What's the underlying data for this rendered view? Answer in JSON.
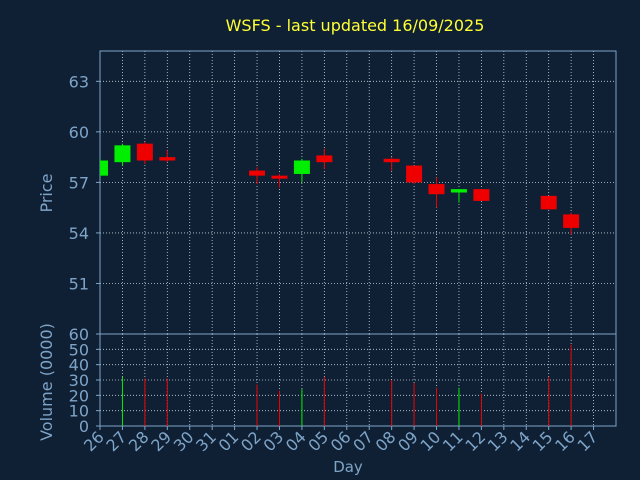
{
  "colors": {
    "background": "#0f2034",
    "axis": "#7ea4c8",
    "grid": "#c8d2dc",
    "title": "#ffff33",
    "up": "#00ee00",
    "down": "#ee0000"
  },
  "chart_data": [
    {
      "type": "candlestick",
      "title": "WSFS - last updated 16/09/2025",
      "ylabel": "Price",
      "ylim": [
        48.0,
        64.8
      ],
      "yticks": [
        "51",
        "54",
        "57",
        "60",
        "63"
      ],
      "ytick_values": [
        51,
        54,
        57,
        60,
        63
      ],
      "grid": true,
      "categories": [
        "26",
        "27",
        "28",
        "29",
        "30",
        "31",
        "01",
        "02",
        "03",
        "04",
        "05",
        "06",
        "07",
        "08",
        "09",
        "10",
        "11",
        "12",
        "13",
        "14",
        "15",
        "16",
        "17"
      ],
      "candles": [
        {
          "day": "26",
          "open": 57.4,
          "close": 58.3,
          "high": 58.4,
          "low": 57.3
        },
        {
          "day": "27",
          "open": 58.2,
          "close": 59.2,
          "high": 59.3,
          "low": 58.0
        },
        {
          "day": "28",
          "open": 59.3,
          "close": 58.3,
          "high": 59.4,
          "low": 58.1
        },
        {
          "day": "29",
          "open": 58.5,
          "close": 58.3,
          "high": 58.9,
          "low": 58.2
        },
        {
          "day": "02",
          "open": 57.7,
          "close": 57.4,
          "high": 57.9,
          "low": 56.9
        },
        {
          "day": "03",
          "open": 57.4,
          "close": 57.3,
          "high": 57.5,
          "low": 56.7
        },
        {
          "day": "04",
          "open": 57.5,
          "close": 58.3,
          "high": 58.4,
          "low": 57.0
        },
        {
          "day": "05",
          "open": 58.6,
          "close": 58.2,
          "high": 59.0,
          "low": 57.8
        },
        {
          "day": "08",
          "open": 58.4,
          "close": 58.2,
          "high": 58.5,
          "low": 57.7
        },
        {
          "day": "09",
          "open": 58.0,
          "close": 57.0,
          "high": 58.0,
          "low": 56.9
        },
        {
          "day": "10",
          "open": 56.9,
          "close": 56.3,
          "high": 57.3,
          "low": 55.5
        },
        {
          "day": "11",
          "open": 56.4,
          "close": 56.6,
          "high": 56.6,
          "low": 55.8
        },
        {
          "day": "12",
          "open": 56.6,
          "close": 55.9,
          "high": 56.6,
          "low": 55.9
        },
        {
          "day": "15",
          "open": 56.2,
          "close": 55.4,
          "high": 56.2,
          "low": 55.4
        },
        {
          "day": "16",
          "open": 55.1,
          "close": 54.3,
          "high": 55.2,
          "low": 53.9
        }
      ]
    },
    {
      "type": "bar",
      "ylabel": "Volume (0000)",
      "xlabel": "Day",
      "ylim": [
        0,
        60
      ],
      "yticks": [
        "0",
        "10",
        "20",
        "30",
        "40",
        "50",
        "60"
      ],
      "ytick_values": [
        0,
        10,
        20,
        30,
        40,
        50,
        60
      ],
      "categories": [
        "26",
        "27",
        "28",
        "29",
        "30",
        "31",
        "01",
        "02",
        "03",
        "04",
        "05",
        "06",
        "07",
        "08",
        "09",
        "10",
        "11",
        "12",
        "13",
        "14",
        "15",
        "16",
        "17"
      ],
      "bars": [
        {
          "day": "27",
          "value": 32,
          "direction": "up"
        },
        {
          "day": "28",
          "value": 31,
          "direction": "down"
        },
        {
          "day": "29",
          "value": 31,
          "direction": "down"
        },
        {
          "day": "02",
          "value": 27,
          "direction": "down"
        },
        {
          "day": "03",
          "value": 23,
          "direction": "down"
        },
        {
          "day": "04",
          "value": 24,
          "direction": "up"
        },
        {
          "day": "05",
          "value": 32,
          "direction": "down"
        },
        {
          "day": "08",
          "value": 30,
          "direction": "down"
        },
        {
          "day": "09",
          "value": 28,
          "direction": "down"
        },
        {
          "day": "10",
          "value": 25,
          "direction": "down"
        },
        {
          "day": "11",
          "value": 25,
          "direction": "up"
        },
        {
          "day": "12",
          "value": 21,
          "direction": "down"
        },
        {
          "day": "15",
          "value": 32,
          "direction": "down"
        },
        {
          "day": "16",
          "value": 53,
          "direction": "down"
        }
      ]
    }
  ]
}
